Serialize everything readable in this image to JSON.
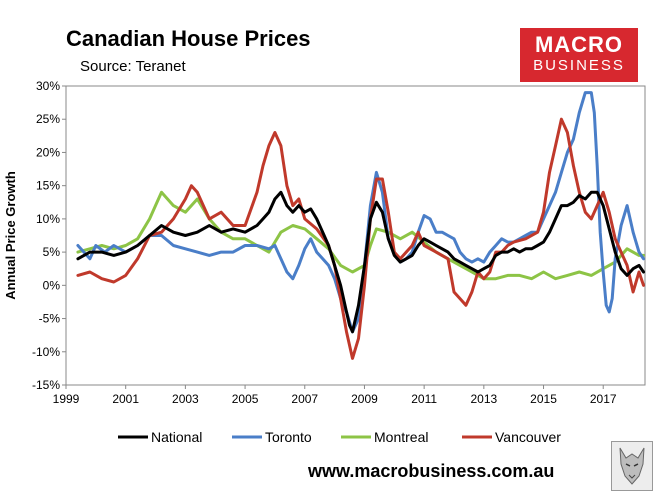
{
  "header": {
    "title": "Canadian House Prices",
    "subtitle": "Source: Teranet",
    "logo_line1": "MACRO",
    "logo_line2": "BUSINESS"
  },
  "footer": {
    "url": "www.macrobusiness.com.au"
  },
  "colors": {
    "national": "#000000",
    "toronto": "#4a7ec8",
    "montreal": "#8dc446",
    "vancouver": "#c0392b",
    "brand": "#d7282f"
  },
  "chart_data": {
    "type": "line",
    "title": "Canadian House Prices",
    "ylabel": "Annual Price Growth",
    "xlabel": "",
    "xlim": [
      1999,
      2018.4
    ],
    "ylim": [
      -15,
      30
    ],
    "x_ticks": [
      "1999",
      "2001",
      "2003",
      "2005",
      "2007",
      "2009",
      "2011",
      "2013",
      "2015",
      "2017"
    ],
    "y_ticks": [
      "30%",
      "25%",
      "20%",
      "15%",
      "10%",
      "5%",
      "0%",
      "-5%",
      "-10%",
      "-15%"
    ],
    "series": [
      {
        "name": "National",
        "color": "#000000",
        "x": [
          1999.4,
          1999.8,
          2000.2,
          2000.6,
          2001.0,
          2001.4,
          2001.8,
          2002.2,
          2002.6,
          2003.0,
          2003.4,
          2003.8,
          2004.2,
          2004.6,
          2005.0,
          2005.4,
          2005.6,
          2005.8,
          2006.0,
          2006.2,
          2006.4,
          2006.6,
          2006.8,
          2007.0,
          2007.2,
          2007.4,
          2007.6,
          2007.8,
          2008.0,
          2008.2,
          2008.4,
          2008.5,
          2008.6,
          2008.8,
          2009.0,
          2009.2,
          2009.4,
          2009.6,
          2009.8,
          2010.0,
          2010.2,
          2010.4,
          2010.6,
          2010.8,
          2011.0,
          2011.2,
          2011.4,
          2011.6,
          2011.8,
          2012.0,
          2012.2,
          2012.4,
          2012.6,
          2012.8,
          2013.0,
          2013.2,
          2013.4,
          2013.6,
          2013.8,
          2014.0,
          2014.2,
          2014.4,
          2014.6,
          2014.8,
          2015.0,
          2015.2,
          2015.4,
          2015.6,
          2015.8,
          2016.0,
          2016.2,
          2016.4,
          2016.6,
          2016.8,
          2017.0,
          2017.2,
          2017.4,
          2017.6,
          2017.8,
          2018.0,
          2018.2,
          2018.35
        ],
        "values": [
          4,
          5,
          5,
          4.5,
          5,
          6,
          7.5,
          9,
          8,
          7.5,
          8,
          9,
          8,
          8.5,
          8,
          9,
          10,
          11,
          13,
          14,
          12,
          11,
          12,
          11,
          11.5,
          10,
          8,
          6,
          3,
          0,
          -4,
          -6,
          -7,
          -3,
          3,
          10,
          12.5,
          11,
          7,
          4.5,
          3.5,
          4,
          4.5,
          6,
          7,
          6.5,
          6,
          5.5,
          5,
          4,
          3.5,
          3,
          2.5,
          2,
          2.5,
          3,
          4.5,
          5,
          5,
          5.5,
          5,
          5.5,
          5.5,
          6,
          6.5,
          8,
          10,
          12,
          12,
          12.5,
          13.5,
          13,
          14,
          14,
          12,
          8.5,
          5,
          2.5,
          1.5,
          2.5,
          3,
          2
        ]
      },
      {
        "name": "Toronto",
        "color": "#4a7ec8",
        "x": [
          1999.4,
          1999.8,
          2000.0,
          2000.3,
          2000.6,
          2001.0,
          2001.4,
          2001.8,
          2002.2,
          2002.6,
          2003.0,
          2003.4,
          2003.8,
          2004.2,
          2004.6,
          2005.0,
          2005.4,
          2005.8,
          2006.0,
          2006.2,
          2006.4,
          2006.6,
          2006.8,
          2007.0,
          2007.2,
          2007.4,
          2007.6,
          2007.8,
          2008.0,
          2008.2,
          2008.4,
          2008.6,
          2008.8,
          2009.0,
          2009.2,
          2009.4,
          2009.6,
          2009.8,
          2010.0,
          2010.2,
          2010.4,
          2010.6,
          2010.8,
          2011.0,
          2011.2,
          2011.4,
          2011.6,
          2011.8,
          2012.0,
          2012.2,
          2012.4,
          2012.6,
          2012.8,
          2013.0,
          2013.2,
          2013.4,
          2013.6,
          2013.8,
          2014.0,
          2014.2,
          2014.4,
          2014.6,
          2014.8,
          2015.0,
          2015.2,
          2015.4,
          2015.6,
          2015.8,
          2016.0,
          2016.2,
          2016.4,
          2016.6,
          2016.7,
          2016.8,
          2016.9,
          2017.0,
          2017.1,
          2017.2,
          2017.3,
          2017.4,
          2017.6,
          2017.8,
          2018.0,
          2018.2,
          2018.35
        ],
        "values": [
          6,
          4,
          6,
          5,
          6,
          5,
          6,
          7.5,
          7.5,
          6,
          5.5,
          5,
          4.5,
          5,
          5,
          6,
          6,
          5.5,
          6,
          4,
          2,
          1,
          3,
          5.5,
          7,
          5,
          4,
          3,
          1,
          -2,
          -4,
          -7,
          -5,
          3,
          12,
          17,
          14,
          7,
          5,
          3.5,
          4,
          5,
          8,
          10.5,
          10,
          8,
          8,
          7.5,
          7,
          5,
          4,
          3.5,
          4,
          3.5,
          5,
          6,
          7,
          6.5,
          6.5,
          7,
          7.5,
          8,
          8,
          10,
          12,
          14,
          17,
          20,
          22,
          26,
          29,
          29,
          26,
          18,
          8,
          2,
          -3,
          -4,
          -2,
          4,
          9,
          12,
          8,
          5,
          4
        ]
      },
      {
        "name": "Montreal",
        "color": "#8dc446",
        "x": [
          1999.4,
          1999.8,
          2000.2,
          2000.6,
          2001.0,
          2001.4,
          2001.8,
          2002.0,
          2002.2,
          2002.6,
          2003.0,
          2003.4,
          2003.8,
          2004.2,
          2004.6,
          2005.0,
          2005.4,
          2005.8,
          2006.2,
          2006.6,
          2007.0,
          2007.4,
          2007.8,
          2008.2,
          2008.6,
          2009.0,
          2009.2,
          2009.4,
          2009.8,
          2010.2,
          2010.6,
          2011.0,
          2011.4,
          2011.8,
          2012.2,
          2012.6,
          2013.0,
          2013.4,
          2013.8,
          2014.2,
          2014.6,
          2015.0,
          2015.4,
          2015.8,
          2016.2,
          2016.6,
          2017.0,
          2017.4,
          2017.8,
          2018.2,
          2018.35
        ],
        "values": [
          5,
          5.5,
          6,
          5.5,
          6,
          7,
          10,
          12,
          14,
          12,
          11,
          13,
          10,
          8,
          7,
          7,
          6,
          5,
          8,
          9,
          8.5,
          7,
          5.5,
          3,
          2,
          3,
          6,
          8.5,
          8,
          7,
          8,
          6.5,
          5,
          4,
          3,
          2,
          1,
          1,
          1.5,
          1.5,
          1,
          2,
          1,
          1.5,
          2,
          1.5,
          2.5,
          3.5,
          5.5,
          4.5,
          4.5
        ]
      },
      {
        "name": "Vancouver",
        "color": "#c0392b",
        "x": [
          1999.4,
          1999.8,
          2000.2,
          2000.6,
          2001.0,
          2001.4,
          2001.8,
          2002.2,
          2002.6,
          2003.0,
          2003.2,
          2003.4,
          2003.8,
          2004.2,
          2004.6,
          2005.0,
          2005.4,
          2005.6,
          2005.8,
          2006.0,
          2006.2,
          2006.4,
          2006.6,
          2006.8,
          2007.0,
          2007.4,
          2007.8,
          2008.0,
          2008.2,
          2008.4,
          2008.6,
          2008.8,
          2009.0,
          2009.2,
          2009.4,
          2009.6,
          2009.8,
          2010.0,
          2010.2,
          2010.4,
          2010.6,
          2010.8,
          2011.0,
          2011.4,
          2011.8,
          2012.0,
          2012.2,
          2012.4,
          2012.6,
          2012.8,
          2013.0,
          2013.2,
          2013.4,
          2013.6,
          2013.8,
          2014.0,
          2014.4,
          2014.8,
          2015.0,
          2015.2,
          2015.4,
          2015.6,
          2015.8,
          2016.0,
          2016.2,
          2016.4,
          2016.6,
          2016.8,
          2017.0,
          2017.2,
          2017.4,
          2017.6,
          2017.8,
          2018.0,
          2018.2,
          2018.35
        ],
        "values": [
          1.5,
          2,
          1,
          0.5,
          1.5,
          4,
          7.5,
          8,
          10,
          13,
          15,
          14,
          10,
          11,
          9,
          9,
          14,
          18,
          21,
          23,
          21,
          15,
          12,
          13,
          10,
          8.5,
          6,
          3,
          -2,
          -7,
          -11,
          -8,
          0,
          10,
          16,
          16,
          11,
          5,
          4,
          5,
          6,
          8,
          6,
          5,
          4,
          -1,
          -2,
          -3,
          -1,
          2,
          1,
          2,
          5,
          5,
          6,
          6.5,
          7,
          8,
          11,
          17,
          21,
          25,
          23,
          18,
          14,
          11,
          10,
          12,
          14,
          11,
          7,
          5,
          3,
          -1,
          2,
          0
        ]
      }
    ],
    "legend": [
      "National",
      "Toronto",
      "Montreal",
      "Vancouver"
    ],
    "legend_position": "bottom"
  }
}
